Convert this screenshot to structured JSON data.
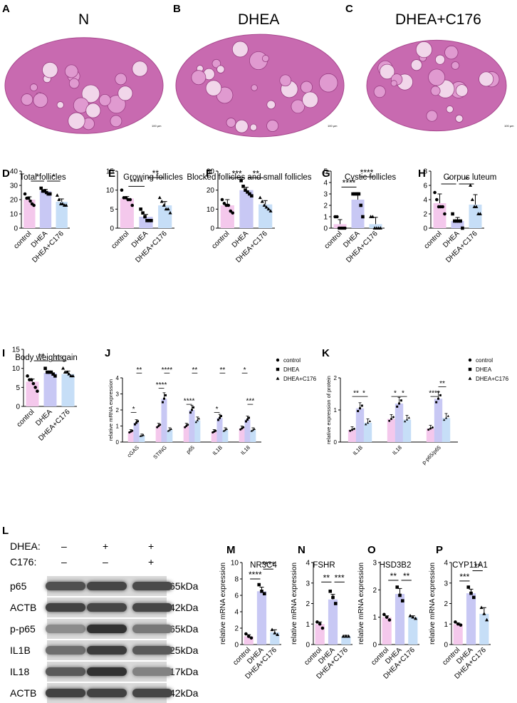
{
  "histology": {
    "panels": [
      {
        "letter": "A",
        "title": "N",
        "scale": "100 µm"
      },
      {
        "letter": "B",
        "title": "DHEA",
        "scale": "100 µm"
      },
      {
        "letter": "C",
        "title": "DHEA+C176",
        "scale": "100 µm"
      }
    ]
  },
  "colors": {
    "control": "#f4c8ec",
    "dhea": "#c8c8f4",
    "c176": "#c6def7",
    "tissue": "#c86ab0",
    "tissue_light": "#f1d6ea"
  },
  "chart_data": [
    {
      "id": "D",
      "type": "bar",
      "title": "Total follicles",
      "categories": [
        "control",
        "DHEA",
        "DHEA+C176"
      ],
      "values": [
        20,
        26,
        18.5
      ],
      "errors": [
        2,
        1.2,
        2
      ],
      "ylim": [
        0,
        40
      ],
      "yticks": [
        0,
        10,
        20,
        30,
        40
      ],
      "points": [
        [
          24,
          21,
          21,
          19,
          17,
          16
        ],
        [
          28,
          26,
          26,
          25,
          24,
          24
        ],
        [
          23,
          20,
          17,
          17,
          16,
          16
        ]
      ],
      "sig": [
        {
          "a": 0,
          "b": 1,
          "label": "*",
          "y": 33
        },
        {
          "a": 1,
          "b": 2,
          "label": "*",
          "y": 33
        }
      ]
    },
    {
      "id": "E",
      "type": "bar",
      "title": "Growing follicles",
      "categories": [
        "control",
        "DHEA",
        "DHEA+C176"
      ],
      "values": [
        7.8,
        3,
        6
      ],
      "errors": [
        0.5,
        0.6,
        1
      ],
      "ylim": [
        0,
        15
      ],
      "yticks": [
        0,
        5,
        10,
        15
      ],
      "points": [
        [
          10,
          8,
          8,
          7.5,
          7.5,
          6
        ],
        [
          5,
          4,
          3,
          2,
          2,
          2
        ],
        [
          8,
          7,
          6,
          5,
          5,
          4
        ]
      ],
      "sig": [
        {
          "a": 0,
          "b": 1,
          "label": "****",
          "y": 11
        },
        {
          "a": 1,
          "b": 2,
          "label": "**",
          "y": 13.3
        }
      ]
    },
    {
      "id": "F",
      "type": "bar",
      "title": "Blocked follicles and small follicles",
      "categories": [
        "control",
        "DHEA",
        "DHEA+C176"
      ],
      "values": [
        12,
        20,
        12.5
      ],
      "errors": [
        3,
        1.5,
        2
      ],
      "ylim": [
        0,
        30
      ],
      "yticks": [
        0,
        10,
        20,
        30
      ],
      "points": [
        [
          15,
          13,
          12,
          12,
          9,
          8
        ],
        [
          25,
          22,
          20,
          19,
          18,
          17
        ],
        [
          16,
          14,
          12,
          11,
          10,
          9
        ]
      ],
      "sig": [
        {
          "a": 0,
          "b": 1,
          "label": "***",
          "y": 26.5
        },
        {
          "a": 1,
          "b": 2,
          "label": "**",
          "y": 26.5
        }
      ]
    },
    {
      "id": "G",
      "type": "bar",
      "title": "Cystic follicles",
      "categories": [
        "control",
        "DHEA",
        "DHEA+C176"
      ],
      "values": [
        0.35,
        2.5,
        0.35
      ],
      "errors": [
        0.4,
        0.6,
        0.6
      ],
      "ylim": [
        0,
        5
      ],
      "yticks": [
        0,
        1,
        2,
        3,
        4,
        5
      ],
      "points": [
        [
          1,
          1,
          0,
          0,
          0,
          0
        ],
        [
          3,
          3,
          3,
          3,
          2,
          1
        ],
        [
          1,
          1,
          0,
          0,
          0,
          0
        ]
      ],
      "sig": [
        {
          "a": 0,
          "b": 1,
          "label": "****",
          "y": 3.6
        },
        {
          "a": 1,
          "b": 2,
          "label": "****",
          "y": 4.5
        }
      ]
    },
    {
      "id": "H",
      "type": "bar",
      "title": "Corpus luteum",
      "categories": [
        "control",
        "DHEA",
        "DHEA+C176"
      ],
      "values": [
        3.5,
        1,
        3.3
      ],
      "errors": [
        1.3,
        0.5,
        1.4
      ],
      "ylim": [
        0,
        8
      ],
      "yticks": [
        0,
        2,
        4,
        6,
        8
      ],
      "points": [
        [
          5,
          4,
          3,
          3,
          3,
          2
        ],
        [
          2,
          1,
          1,
          1,
          1,
          0
        ],
        [
          6,
          4,
          3,
          3,
          2,
          2
        ]
      ],
      "sig": [
        {
          "a": 0,
          "b": 1,
          "label": "*",
          "y": 6.2
        },
        {
          "a": 1,
          "b": 2,
          "label": "*",
          "y": 6.2
        }
      ]
    },
    {
      "id": "I",
      "type": "bar",
      "title": "Body weight gain",
      "categories": [
        "control",
        "DHEA",
        "DHEA+C176"
      ],
      "values": [
        6.5,
        8.8,
        8.5
      ],
      "errors": [
        0.7,
        0.4,
        0.8
      ],
      "ylim": [
        0,
        15
      ],
      "yticks": [
        0,
        5,
        10,
        15
      ],
      "points": [
        [
          8,
          7,
          7,
          6,
          5,
          4
        ],
        [
          10,
          9,
          9,
          9,
          8.5,
          8
        ],
        [
          10,
          9,
          9,
          8.5,
          8,
          8
        ]
      ],
      "sig": [
        {
          "a": 0,
          "b": 1,
          "label": "**",
          "y": 12
        },
        {
          "a": 1,
          "b": 2,
          "label": "ns",
          "y": 12
        }
      ]
    },
    {
      "id": "J",
      "type": "groupedbar",
      "categories": [
        "cGAS",
        "STING",
        "p65",
        "IL1B",
        "IL18"
      ],
      "series": [
        {
          "name": "control",
          "values": [
            0.65,
            1,
            1,
            0.65,
            0.85
          ]
        },
        {
          "name": "DHEA",
          "values": [
            1.2,
            2.7,
            2,
            1.5,
            1.4
          ]
        },
        {
          "name": "DHEA+C176",
          "values": [
            0.4,
            0.75,
            1.35,
            0.75,
            0.75
          ]
        }
      ],
      "ylabel": "relative mRNA expression",
      "ylim": [
        0,
        4
      ],
      "yticks": [
        0,
        1,
        2,
        3,
        4
      ],
      "sig": [
        {
          "g": 0,
          "a": 0,
          "b": 1,
          "label": "*",
          "y": 1.85
        },
        {
          "g": 0,
          "a": 1,
          "b": 2,
          "label": "**",
          "y": 4.3
        },
        {
          "g": 1,
          "a": 0,
          "b": 1,
          "label": "****",
          "y": 3.35
        },
        {
          "g": 1,
          "a": 1,
          "b": 2,
          "label": "****",
          "y": 4.3
        },
        {
          "g": 2,
          "a": 0,
          "b": 1,
          "label": "****",
          "y": 2.35
        },
        {
          "g": 2,
          "a": 1,
          "b": 2,
          "label": "**",
          "y": 4.3
        },
        {
          "g": 3,
          "a": 0,
          "b": 1,
          "label": "*",
          "y": 1.85
        },
        {
          "g": 3,
          "a": 1,
          "b": 2,
          "label": "**",
          "y": 4.3
        },
        {
          "g": 4,
          "a": 0,
          "b": 1,
          "label": "*",
          "y": 4.3
        },
        {
          "g": 4,
          "a": 1,
          "b": 2,
          "label": "***",
          "y": 2.35
        }
      ]
    },
    {
      "id": "K",
      "type": "groupedbar",
      "categories": [
        "IL1B",
        "IL18",
        "p-p65/p65"
      ],
      "series": [
        {
          "name": "control",
          "values": [
            0.38,
            0.72,
            0.42
          ]
        },
        {
          "name": "DHEA",
          "values": [
            1.05,
            1.2,
            1.35
          ]
        },
        {
          "name": "DHEA+C176",
          "values": [
            0.6,
            0.7,
            0.75
          ]
        }
      ],
      "ylabel": "relative expression of protein",
      "ylim": [
        0,
        2
      ],
      "yticks": [
        0,
        1,
        2
      ],
      "sig": [
        {
          "g": 0,
          "a": 0,
          "b": 1,
          "label": "**",
          "y": 1.42
        },
        {
          "g": 0,
          "a": 1,
          "b": 2,
          "label": "*",
          "y": 1.42
        },
        {
          "g": 1,
          "a": 0,
          "b": 1,
          "label": "*",
          "y": 1.42
        },
        {
          "g": 1,
          "a": 1,
          "b": 2,
          "label": "*",
          "y": 1.42
        },
        {
          "g": 2,
          "a": 0,
          "b": 1,
          "label": "****",
          "y": 1.42
        },
        {
          "g": 2,
          "a": 1,
          "b": 2,
          "label": "**",
          "y": 1.72
        }
      ]
    },
    {
      "id": "M",
      "type": "bar",
      "title": "NR3C4",
      "categories": [
        "control",
        "DHEA",
        "DHEA+C176"
      ],
      "values": [
        1,
        6.5,
        1.5
      ],
      "errors": [
        0.2,
        0.5,
        0.3
      ],
      "ylim": [
        0,
        10
      ],
      "yticks": [
        0,
        2,
        4,
        6,
        8,
        10
      ],
      "ylabel": "relative mRNA expression",
      "points": [
        [
          1.3,
          1,
          0.8
        ],
        [
          7.3,
          6.5,
          6.2
        ],
        [
          1.8,
          1.4,
          1.2
        ]
      ],
      "sig": [
        {
          "a": 0,
          "b": 1,
          "label": "****",
          "y": 8
        },
        {
          "a": 1,
          "b": 2,
          "label": "****",
          "y": 9.2
        }
      ]
    },
    {
      "id": "N",
      "type": "bar",
      "title": "FSHR",
      "categories": [
        "control",
        "DHEA",
        "DHEA+C176"
      ],
      "values": [
        1,
        2.2,
        0.4
      ],
      "errors": [
        0.1,
        0.25,
        0.05
      ],
      "ylim": [
        0,
        4
      ],
      "yticks": [
        0,
        1,
        2,
        3,
        4
      ],
      "ylabel": "relative mRNA expression",
      "points": [
        [
          1.1,
          1,
          0.8
        ],
        [
          2.6,
          2.3,
          2
        ],
        [
          0.4,
          0.4,
          0.4
        ]
      ],
      "sig": [
        {
          "a": 0,
          "b": 1,
          "label": "**",
          "y": 3.05
        },
        {
          "a": 1,
          "b": 2,
          "label": "***",
          "y": 3.05
        }
      ]
    },
    {
      "id": "O",
      "type": "bar",
      "title": "HSD3B2",
      "categories": [
        "control",
        "DHEA",
        "DHEA+C176"
      ],
      "values": [
        1,
        1.85,
        1
      ],
      "errors": [
        0.05,
        0.2,
        0.05
      ],
      "ylim": [
        0,
        3
      ],
      "yticks": [
        0,
        1,
        2,
        3
      ],
      "ylabel": "relative mRNA expression",
      "points": [
        [
          1.1,
          1,
          0.9
        ],
        [
          2.1,
          1.8,
          1.6
        ],
        [
          1.05,
          1,
          0.95
        ]
      ],
      "sig": [
        {
          "a": 0,
          "b": 1,
          "label": "**",
          "y": 2.35
        },
        {
          "a": 1,
          "b": 2,
          "label": "**",
          "y": 2.35
        }
      ]
    },
    {
      "id": "P",
      "type": "bar",
      "title": "CYP11A1",
      "categories": [
        "control",
        "DHEA",
        "DHEA+C176"
      ],
      "values": [
        1,
        2.5,
        1.5
      ],
      "errors": [
        0.05,
        0.2,
        0.3
      ],
      "ylim": [
        0,
        4
      ],
      "yticks": [
        0,
        1,
        2,
        3,
        4
      ],
      "ylabel": "relative mRNA expression",
      "points": [
        [
          1.1,
          1,
          0.95
        ],
        [
          2.8,
          2.5,
          2.3
        ],
        [
          1.8,
          1.5,
          1.2
        ]
      ],
      "sig": [
        {
          "a": 0,
          "b": 1,
          "label": "***",
          "y": 3.1
        },
        {
          "a": 1,
          "b": 2,
          "label": "**",
          "y": 3.6
        }
      ]
    }
  ],
  "legend": {
    "items": [
      "control",
      "DHEA",
      "DHEA+C176"
    ]
  },
  "western": {
    "letter": "L",
    "conditions": [
      {
        "label": "DHEA:",
        "marks": [
          "–",
          "+",
          "+"
        ]
      },
      {
        "label": "C176:",
        "marks": [
          "–",
          "–",
          "+"
        ]
      }
    ],
    "bands": [
      {
        "name": "p65",
        "size": "65kDa",
        "int": [
          0.75,
          0.8,
          0.78
        ]
      },
      {
        "name": "ACTB",
        "size": "42kDa",
        "int": [
          0.82,
          0.8,
          0.8
        ]
      },
      {
        "name": "p-p65",
        "size": "65kDa",
        "int": [
          0.45,
          0.9,
          0.55
        ]
      },
      {
        "name": "IL1B",
        "size": "25kDa",
        "int": [
          0.6,
          0.85,
          0.7
        ]
      },
      {
        "name": "IL18",
        "size": "17kDa",
        "int": [
          0.7,
          0.9,
          0.5
        ]
      },
      {
        "name": "ACTB",
        "size": "42kDa",
        "int": [
          0.82,
          0.82,
          0.8
        ]
      }
    ]
  }
}
